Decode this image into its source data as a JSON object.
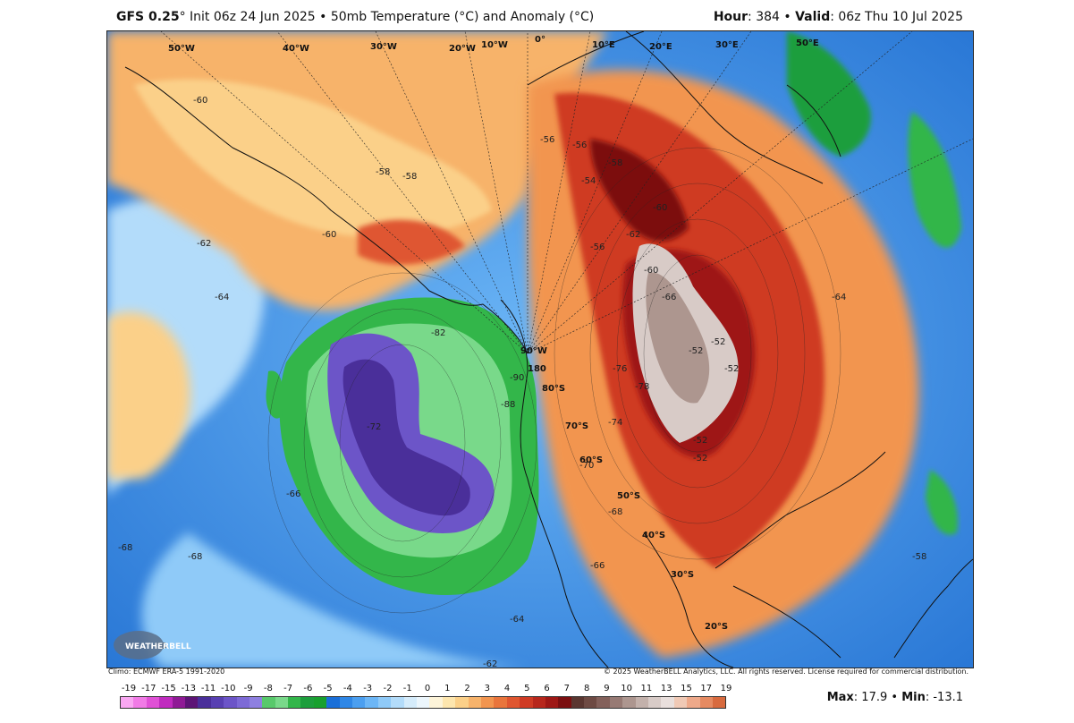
{
  "header": {
    "model": "GFS 0.25",
    "deg": "°",
    "init": " Init 06z 24 Jun 2025 • 50mb Temperature (°C) and Anomaly (°C)",
    "hour_label": "Hour",
    "hour_value": ": 384 • ",
    "valid_label": "Valid",
    "valid_value": ": 06z Thu 10 Jul 2025"
  },
  "footer": {
    "climo": "Climo: ECMWF ERA-5 1991-2020",
    "copyright": "© 2025 WeatherBELL Analytics, LLC. All rights reserved. License required for commercial distribution."
  },
  "logo": {
    "text": "WEATHERBELL"
  },
  "legend": {
    "ticks": [
      "-19",
      "-17",
      "-15",
      "-13",
      "-11",
      "-10",
      "-9",
      "-8",
      "-7",
      "-6",
      "-5",
      "-4",
      "-3",
      "-2",
      "-1",
      "0",
      "1",
      "2",
      "3",
      "4",
      "5",
      "6",
      "7",
      "8",
      "9",
      "10",
      "11",
      "13",
      "15",
      "17",
      "19"
    ],
    "colors": [
      "#f9a7f2",
      "#f17be6",
      "#e051d6",
      "#c02bbf",
      "#8f1a95",
      "#5d1476",
      "#4a2f9a",
      "#5840b2",
      "#6c55c8",
      "#7d6ad6",
      "#8e80e0",
      "#58c96b",
      "#79d98a",
      "#33b64a",
      "#1d9e3c",
      "#18a02e",
      "#1a6fd8",
      "#2f87e6",
      "#4b9ff0",
      "#6cb6f6",
      "#8fcaf8",
      "#b3dcfa",
      "#d5ecfb",
      "#ecf6fc",
      "#fdf4d9",
      "#fde6ae",
      "#fbd089",
      "#f7b36b",
      "#f2954f",
      "#e9753c",
      "#df5630",
      "#cf3b24",
      "#b7271c",
      "#9e1815",
      "#7b0f10",
      "#5a3630",
      "#6e4a43",
      "#83605a",
      "#977a74",
      "#ad968f",
      "#c3b1ab",
      "#d8cbc7",
      "#e9dfdc",
      "#f0c9b5",
      "#eea98a",
      "#e68a61",
      "#d86a3e"
    ]
  },
  "stats": {
    "max_label": "Max",
    "max_value": ": 17.9 • ",
    "min_label": "Min",
    "min_value": ": -13.1"
  },
  "map": {
    "lat_labels": [
      "90°W",
      "180",
      "80°S",
      "70°S",
      "60°S",
      "50°S",
      "40°S",
      "30°S",
      "20°S"
    ],
    "lon_labels": [
      "50°W",
      "40°W",
      "30°W",
      "20°W",
      "10°W",
      "0°",
      "10°E",
      "20°E",
      "30°E",
      "50°E"
    ],
    "contour_labels": [
      "-56",
      "-56",
      "-58",
      "-60",
      "-62",
      "-54",
      "-56",
      "-60",
      "-66",
      "-74",
      "-76",
      "-78",
      "-52",
      "-52",
      "-52",
      "-52",
      "-72",
      "-82",
      "-88",
      "-90",
      "-70",
      "-68",
      "-66",
      "-64",
      "-62",
      "-60",
      "-60",
      "-58",
      "-58",
      "-64",
      "-62",
      "-66",
      "-68",
      "-66",
      "-68",
      "-64",
      "-58",
      "-52"
    ]
  }
}
